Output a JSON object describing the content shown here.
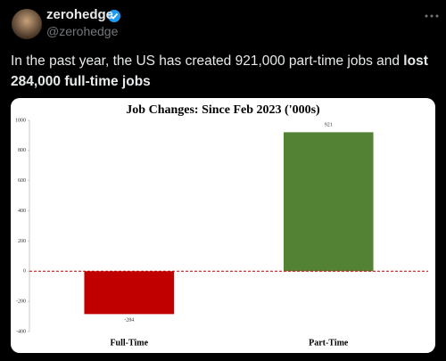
{
  "tweet": {
    "name": "zerohedge",
    "handle": "@zerohedge",
    "text": "In the past year, the US has created 921,000 part-time jobs and ",
    "text_bold": "lost 284,000 full-time jobs"
  },
  "chart_data": {
    "type": "bar",
    "title": "Job Changes: Since Feb 2023 ('000s)",
    "categories": [
      "Full-Time",
      "Part-Time"
    ],
    "values": [
      -284,
      921
    ],
    "colors": [
      "#c00000",
      "#548235"
    ],
    "ylim": [
      -400,
      1000
    ],
    "yticks": [
      -400,
      -200,
      0,
      200,
      400,
      600,
      800,
      1000
    ],
    "zero_line_color": "#c00000"
  }
}
